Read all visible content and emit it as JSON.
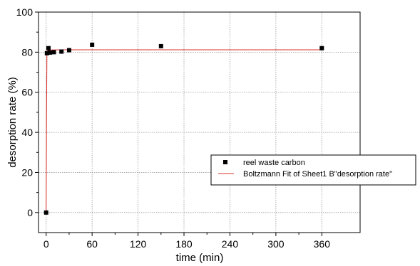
{
  "chart_data": {
    "type": "scatter",
    "xlabel": "time (min)",
    "ylabel": "desorption rate (%)",
    "xlim": [
      -10,
      410
    ],
    "ylim": [
      -10,
      100
    ],
    "x_ticks": [
      0,
      60,
      120,
      180,
      240,
      300,
      360
    ],
    "y_ticks": [
      0,
      20,
      40,
      60,
      80,
      100
    ],
    "grid": true,
    "legend_position": "right",
    "series": [
      {
        "name": "reel waste carbon",
        "type": "scatter",
        "color": "#000000",
        "points": [
          {
            "x": 0,
            "y": 0
          },
          {
            "x": 1,
            "y": 79.5
          },
          {
            "x": 3,
            "y": 82.0
          },
          {
            "x": 5,
            "y": 79.8
          },
          {
            "x": 10,
            "y": 80.0
          },
          {
            "x": 20,
            "y": 80.3
          },
          {
            "x": 30,
            "y": 81.0
          },
          {
            "x": 60,
            "y": 83.7
          },
          {
            "x": 150,
            "y": 83.0
          },
          {
            "x": 360,
            "y": 82.0
          }
        ]
      },
      {
        "name": "Boltzmann Fit of Sheet1 B\"desorption rate\"",
        "type": "line",
        "color": "#d9302c",
        "points": [
          {
            "x": 0,
            "y": 0
          },
          {
            "x": 0.5,
            "y": 50
          },
          {
            "x": 1,
            "y": 79.6
          },
          {
            "x": 2,
            "y": 80.8
          },
          {
            "x": 5,
            "y": 81.1
          },
          {
            "x": 20,
            "y": 81.2
          },
          {
            "x": 100,
            "y": 81.2
          },
          {
            "x": 360,
            "y": 81.2
          }
        ]
      }
    ]
  }
}
